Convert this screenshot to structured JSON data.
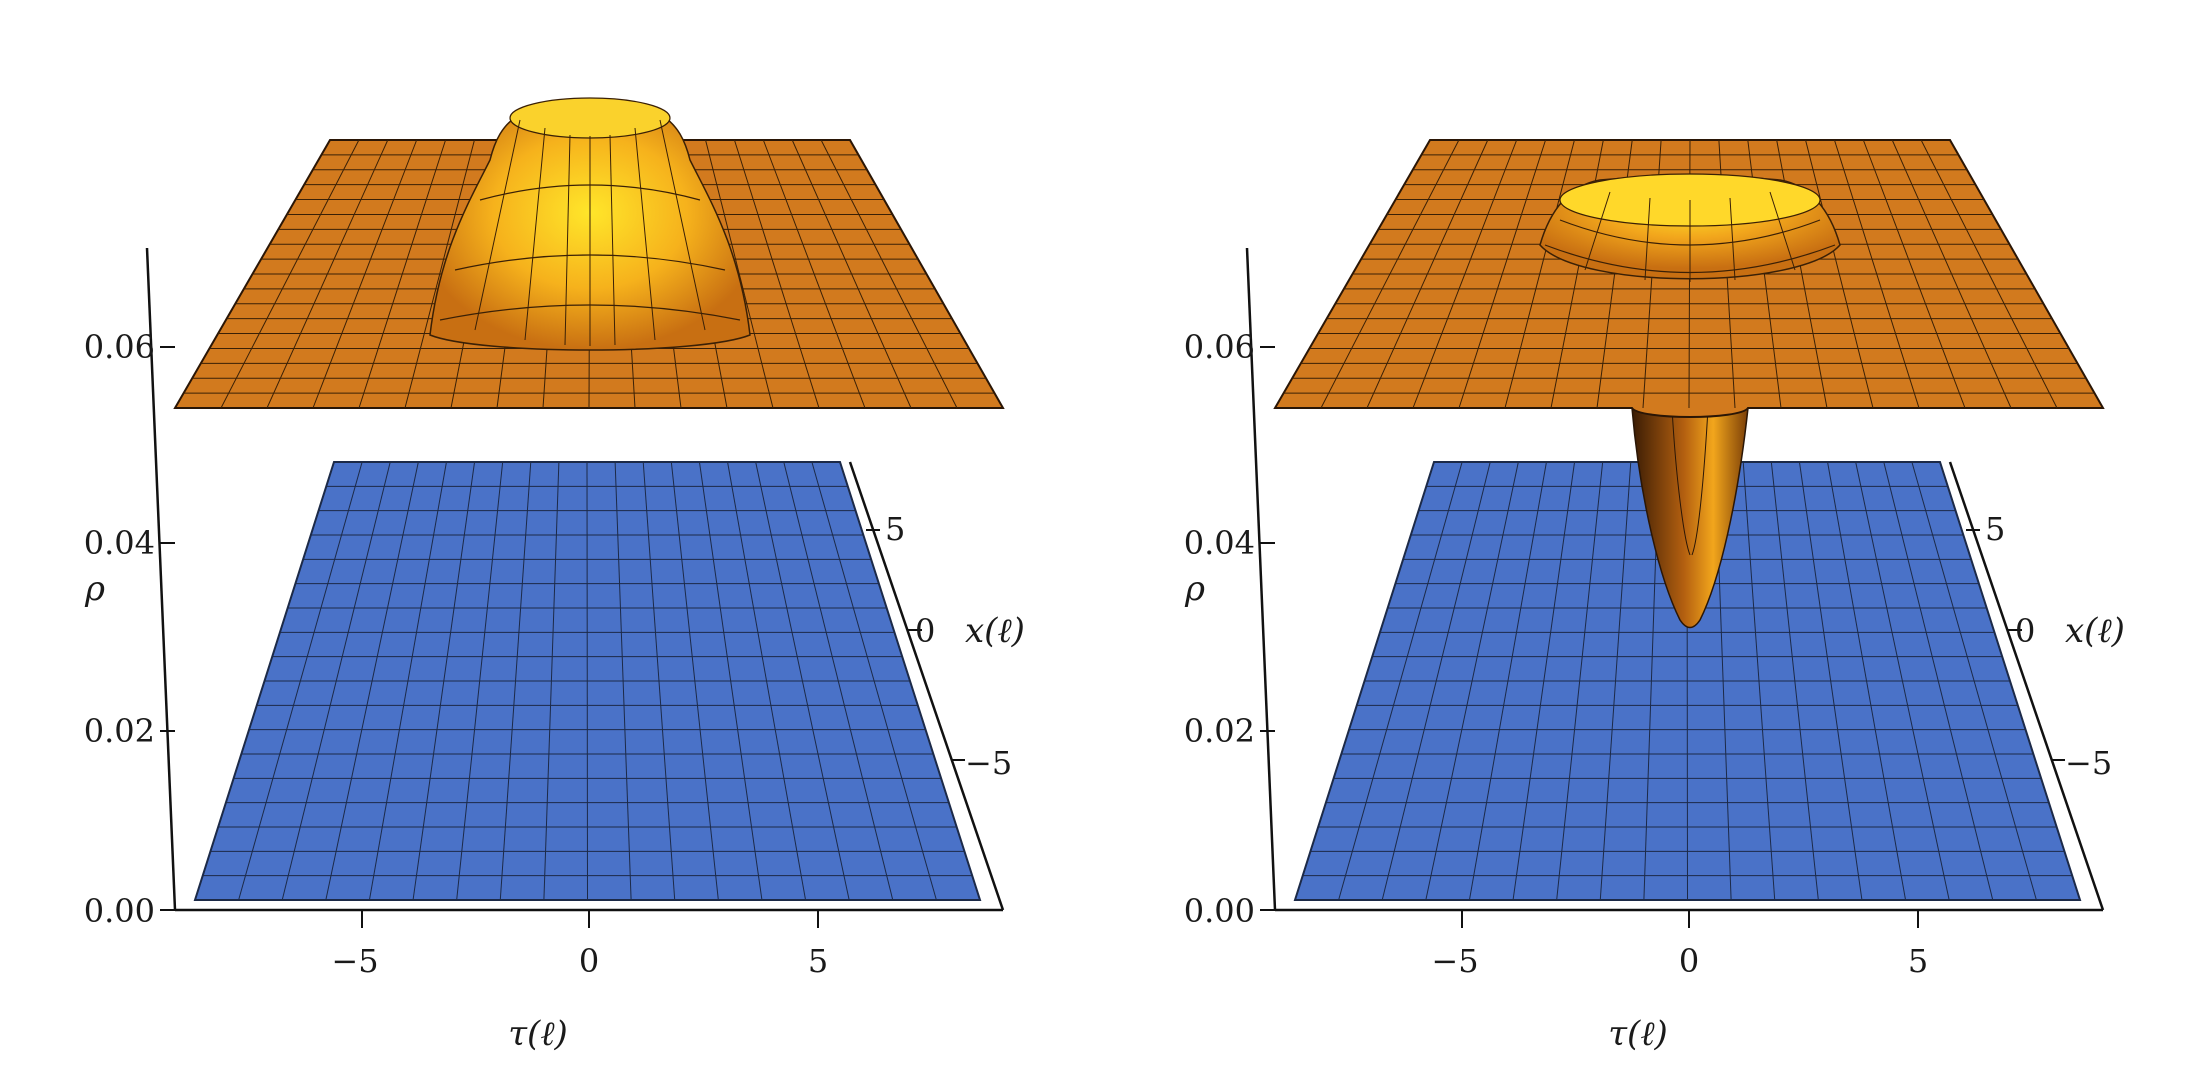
{
  "chart_data": [
    {
      "type": "surface3d",
      "panel": "left",
      "title": "",
      "xlabel": "τ(ℓ)",
      "ylabel": "x(ℓ)",
      "zlabel": "ρ",
      "xlim": [
        -9,
        9
      ],
      "ylim": [
        -9,
        9
      ],
      "zlim": [
        0,
        0.07
      ],
      "x_ticks": [
        "−5",
        "0",
        "5"
      ],
      "y_ticks": [
        "−5",
        "0",
        "5"
      ],
      "z_ticks": [
        "0.00",
        "0.02",
        "0.04",
        "0.06"
      ],
      "surfaces": [
        {
          "name": "upper",
          "color": "#d27a1e",
          "highlight": "#ffd21e",
          "base_level": 0.055,
          "feature": "raised ring plateau",
          "center": [
            0,
            0
          ],
          "ring_radius": 2.5,
          "peak_height": 0.009
        },
        {
          "name": "lower",
          "color": "#4a72c8",
          "base_level": 0.0,
          "feature": "flat plane"
        }
      ],
      "grid": true
    },
    {
      "type": "surface3d",
      "panel": "right",
      "title": "",
      "xlabel": "τ(ℓ)",
      "ylabel": "x(ℓ)",
      "zlabel": "ρ",
      "xlim": [
        -9,
        9
      ],
      "ylim": [
        -9,
        9
      ],
      "zlim": [
        0,
        0.07
      ],
      "x_ticks": [
        "−5",
        "0",
        "5"
      ],
      "y_ticks": [
        "−5",
        "0",
        "5"
      ],
      "z_ticks": [
        "0.00",
        "0.02",
        "0.04",
        "0.06"
      ],
      "surfaces": [
        {
          "name": "upper",
          "color": "#d27a1e",
          "highlight": "#ffd21e",
          "base_level": 0.055,
          "feature": "ring bump with central downward spike",
          "center": [
            0,
            0
          ],
          "ring_radius": 3.0,
          "peak_height": 0.006,
          "spike_min": 0.03
        },
        {
          "name": "lower",
          "color": "#4a72c8",
          "base_level": 0.0,
          "feature": "flat plane"
        }
      ],
      "grid": true
    }
  ]
}
